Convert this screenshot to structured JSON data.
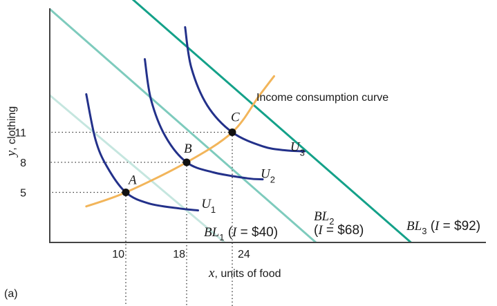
{
  "chart_data": {
    "type": "line",
    "panel_label": "(a)",
    "xlabel": {
      "var": "x",
      "rest": ", units of food"
    },
    "ylabel": {
      "var": "y",
      "rest": ", clothing"
    },
    "x_ticks": [
      10,
      18,
      24
    ],
    "y_ticks": [
      5,
      8,
      11
    ],
    "colors": {
      "bl1": "#c5e6df",
      "bl2": "#7ecbbd",
      "bl3": "#14a189",
      "indifference": "#23318a",
      "icc": "#f2b55a",
      "axis": "#444444",
      "point": "#111111"
    },
    "budget_lines": [
      {
        "name": "BL",
        "sub": "1",
        "income_text": "I = $40",
        "x_intercept": 23,
        "y_intercept": 14.7
      },
      {
        "name": "BL",
        "sub": "2",
        "income_text": "I = $68",
        "x_intercept": 35,
        "y_intercept": 23.3
      },
      {
        "name": "BL",
        "sub": "3",
        "income_text": "I = $92",
        "x_intercept": 47.5,
        "y_intercept": 31.5
      }
    ],
    "indifference_curves": [
      {
        "name": "U",
        "sub": "1",
        "points": [
          [
            4.8,
            14.8
          ],
          [
            6,
            10.3
          ],
          [
            7.5,
            7.6
          ],
          [
            10,
            5
          ],
          [
            13,
            3.9
          ],
          [
            17,
            3.4
          ],
          [
            19.5,
            3.2
          ]
        ]
      },
      {
        "name": "U",
        "sub": "2",
        "points": [
          [
            12.5,
            18.3
          ],
          [
            13.3,
            14.3
          ],
          [
            15.2,
            10.6
          ],
          [
            18,
            8
          ],
          [
            21.5,
            7
          ],
          [
            26,
            6.4
          ],
          [
            28,
            6.3
          ]
        ]
      },
      {
        "name": "U",
        "sub": "3",
        "points": [
          [
            17.8,
            21.5
          ],
          [
            18.6,
            17.5
          ],
          [
            20.7,
            13.7
          ],
          [
            24,
            11
          ],
          [
            28,
            9.6
          ],
          [
            31,
            9.2
          ],
          [
            33.5,
            9.1
          ]
        ]
      }
    ],
    "icc": {
      "label": "Income consumption curve",
      "points": [
        [
          4.8,
          3.6
        ],
        [
          10,
          5
        ],
        [
          18,
          8
        ],
        [
          24,
          11
        ],
        [
          27.5,
          14.6
        ],
        [
          29.5,
          16.6
        ]
      ]
    },
    "bundles": [
      {
        "label": "A",
        "x": 10,
        "y": 5
      },
      {
        "label": "B",
        "x": 18,
        "y": 8
      },
      {
        "label": "C",
        "x": 24,
        "y": 11
      }
    ]
  }
}
